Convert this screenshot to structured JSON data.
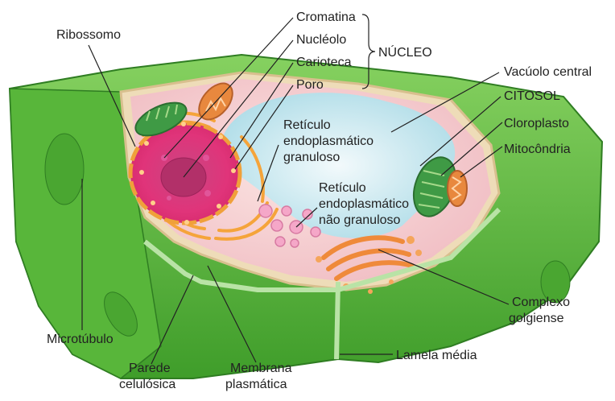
{
  "labels": {
    "ribossomo": "Ribossomo",
    "cromatina": "Cromatina",
    "nucleolo": "Nucléolo",
    "carioteca": "Carioteca",
    "poro": "Poro",
    "nucleo": "NÚCLEO",
    "rer_1": "Retículo",
    "rer_2": "endoplasmático",
    "rer_3": "granuloso",
    "rel_1": "Retículo",
    "rel_2": "endoplasmático",
    "rel_3": "não granuloso",
    "vacuolo": "Vacúolo central",
    "citosol": "CITOSOL",
    "cloroplasto": "Cloroplasto",
    "mitocondria": "Mitocôndria",
    "golgi_1": "Complexo",
    "golgi_2": "golgiense",
    "lamela": "Lamela média",
    "microtubulo": "Microtúbulo",
    "parede_1": "Parede",
    "parede_2": "celulósica",
    "membrana_1": "Membrana",
    "membrana_2": "plasmática"
  },
  "colors": {
    "cell_wall_outer": "#5cbd3c",
    "cell_wall_dark": "#3f9d2a",
    "cell_wall_light": "#b9e3a6",
    "membrane": "#f1dcc0",
    "cytosol": "#f5c9c7",
    "nucleus": "#cc2f6a",
    "nucleolus": "#b23069",
    "er_rough": "#f3a63a",
    "vacuole": "#bfe6ee",
    "golgi": "#ef8a3a",
    "chloroplast": "#3f9a45",
    "mitochondria": "#e8883e",
    "leader_line": "#222222"
  }
}
